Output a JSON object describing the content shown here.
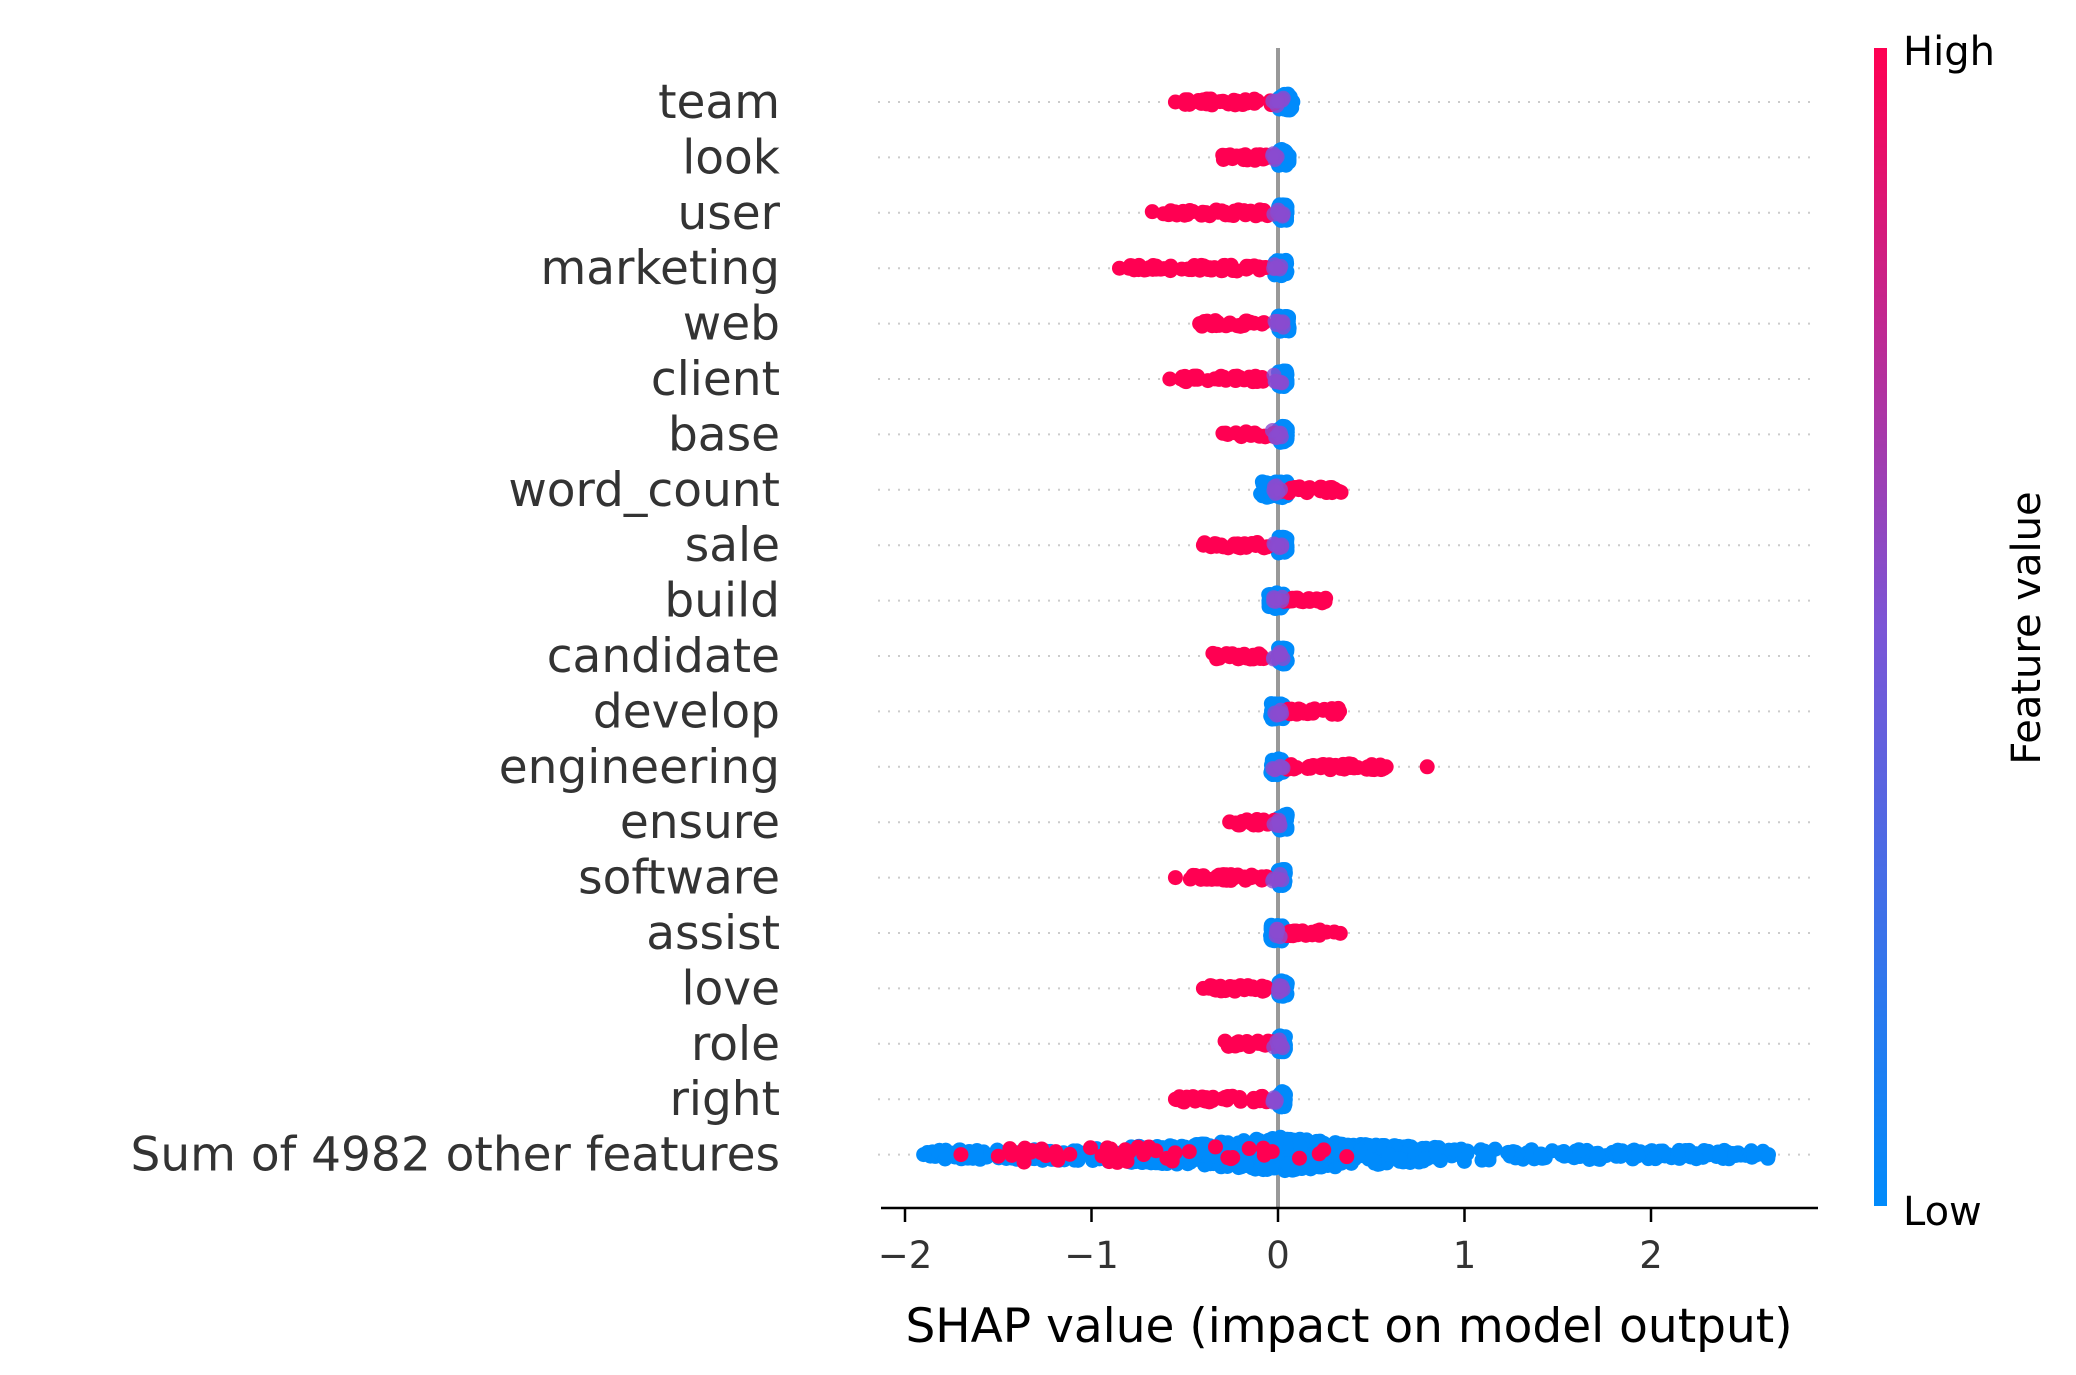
{
  "chart_data": {
    "type": "scatter",
    "subtype": "shap-beeswarm",
    "title": "",
    "xlabel": "SHAP value (impact on model output)",
    "xlim": [
      -2.12,
      2.88
    ],
    "xticks": [
      {
        "value": -2,
        "label": "−2"
      },
      {
        "value": -1,
        "label": "−1"
      },
      {
        "value": 0,
        "label": "0"
      },
      {
        "value": 1,
        "label": "1"
      },
      {
        "value": 2,
        "label": "2"
      }
    ],
    "grid": false,
    "colors": {
      "high": "#ff0052",
      "low": "#008bfb",
      "zero_line": "#999999",
      "row_line": "#cccccc",
      "axis": "#000000"
    },
    "colorbar": {
      "title": "Feature value",
      "high_label": "High",
      "low_label": "Low",
      "placement": "right"
    },
    "features": [
      {
        "name": "team",
        "low": {
          "min": 0.0,
          "max": 0.08
        },
        "high": {
          "min": -0.55,
          "max": -0.0,
          "outliers": [
            -0.55
          ]
        }
      },
      {
        "name": "look",
        "low": {
          "min": 0.0,
          "max": 0.06
        },
        "high": {
          "min": -0.3,
          "max": -0.02,
          "outliers": []
        }
      },
      {
        "name": "user",
        "low": {
          "min": 0.0,
          "max": 0.05
        },
        "high": {
          "min": -0.68,
          "max": -0.05,
          "outliers": []
        }
      },
      {
        "name": "marketing",
        "low": {
          "min": -0.02,
          "max": 0.05
        },
        "high": {
          "min": -0.85,
          "max": -0.05,
          "outliers": [
            -0.85,
            -0.8
          ]
        }
      },
      {
        "name": "web",
        "low": {
          "min": 0.0,
          "max": 0.06
        },
        "high": {
          "min": -0.42,
          "max": -0.05,
          "outliers": [
            -0.42
          ]
        }
      },
      {
        "name": "client",
        "low": {
          "min": 0.0,
          "max": 0.05
        },
        "high": {
          "min": -0.58,
          "max": -0.05,
          "outliers": [
            -0.58,
            -0.52
          ]
        }
      },
      {
        "name": "base",
        "low": {
          "min": 0.0,
          "max": 0.05
        },
        "high": {
          "min": -0.3,
          "max": -0.02,
          "outliers": []
        }
      },
      {
        "name": "word_count",
        "low": {
          "min": -0.1,
          "max": 0.05
        },
        "high": {
          "min": 0.0,
          "max": 0.35,
          "outliers": []
        }
      },
      {
        "name": "sale",
        "low": {
          "min": 0.0,
          "max": 0.05
        },
        "high": {
          "min": -0.4,
          "max": -0.05,
          "outliers": [
            -0.4
          ]
        }
      },
      {
        "name": "build",
        "low": {
          "min": -0.05,
          "max": 0.03
        },
        "high": {
          "min": 0.03,
          "max": 0.28,
          "outliers": []
        }
      },
      {
        "name": "candidate",
        "low": {
          "min": 0.0,
          "max": 0.05
        },
        "high": {
          "min": -0.35,
          "max": -0.05,
          "outliers": []
        }
      },
      {
        "name": "develop",
        "low": {
          "min": -0.04,
          "max": 0.03
        },
        "high": {
          "min": 0.03,
          "max": 0.33,
          "outliers": [
            0.33
          ]
        }
      },
      {
        "name": "engineering",
        "low": {
          "min": -0.04,
          "max": 0.03
        },
        "high": {
          "min": 0.03,
          "max": 0.8,
          "outliers": [
            0.58,
            0.8
          ]
        }
      },
      {
        "name": "ensure",
        "low": {
          "min": 0.0,
          "max": 0.05
        },
        "high": {
          "min": -0.28,
          "max": -0.02,
          "outliers": []
        }
      },
      {
        "name": "software",
        "low": {
          "min": 0.0,
          "max": 0.04
        },
        "high": {
          "min": -0.55,
          "max": -0.05,
          "outliers": [
            -0.55
          ]
        }
      },
      {
        "name": "assist",
        "low": {
          "min": -0.04,
          "max": 0.03
        },
        "high": {
          "min": 0.03,
          "max": 0.35,
          "outliers": []
        }
      },
      {
        "name": "love",
        "low": {
          "min": 0.0,
          "max": 0.05
        },
        "high": {
          "min": -0.4,
          "max": -0.05,
          "outliers": [
            -0.4
          ]
        }
      },
      {
        "name": "role",
        "low": {
          "min": 0.0,
          "max": 0.04
        },
        "high": {
          "min": -0.3,
          "max": -0.02,
          "outliers": []
        }
      },
      {
        "name": "right",
        "low": {
          "min": 0.0,
          "max": 0.04
        },
        "high": {
          "min": -0.55,
          "max": -0.05,
          "outliers": [
            -0.55
          ]
        }
      },
      {
        "name": "Sum of 4982 other features",
        "low": {
          "min": -1.9,
          "max": 2.63
        },
        "high": {
          "min": -1.7,
          "max": 0.5,
          "outliers": [
            -1.7,
            -0.72
          ]
        }
      }
    ]
  }
}
